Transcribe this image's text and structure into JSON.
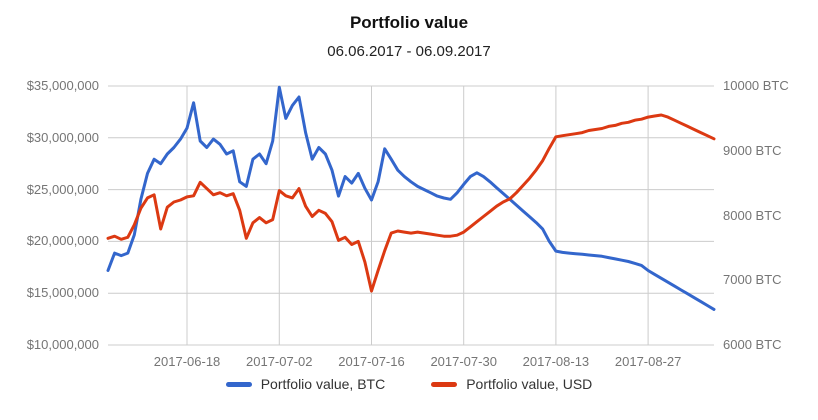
{
  "chart_data": {
    "type": "line",
    "title": "Portfolio value",
    "subtitle": "06.06.2017 - 06.09.2017",
    "grid": true,
    "legend_position": "bottom",
    "left_axis": {
      "min": 10000000,
      "max": 35000000,
      "ticks": [
        {
          "label": "$35,000,000",
          "value": 35000000
        },
        {
          "label": "$30,000,000",
          "value": 30000000
        },
        {
          "label": "$25,000,000",
          "value": 25000000
        },
        {
          "label": "$20,000,000",
          "value": 20000000
        },
        {
          "label": "$15,000,000",
          "value": 15000000
        },
        {
          "label": "$10,000,000",
          "value": 10000000
        }
      ]
    },
    "right_axis": {
      "min": 6000,
      "max": 10000,
      "ticks": [
        {
          "label": "10000 BTC",
          "value": 10000
        },
        {
          "label": "9000 BTC",
          "value": 9000
        },
        {
          "label": "8000 BTC",
          "value": 8000
        },
        {
          "label": "7000 BTC",
          "value": 7000
        },
        {
          "label": "6000 BTC",
          "value": 6000
        }
      ]
    },
    "x_axis": {
      "ticks": [
        {
          "label": "2017-06-18",
          "index": 12
        },
        {
          "label": "2017-07-02",
          "index": 26
        },
        {
          "label": "2017-07-16",
          "index": 40
        },
        {
          "label": "2017-07-30",
          "index": 54
        },
        {
          "label": "2017-08-13",
          "index": 68
        },
        {
          "label": "2017-08-27",
          "index": 82
        }
      ]
    },
    "series": [
      {
        "name": "Portfolio value, BTC",
        "color": "#3366cc",
        "axis": "right",
        "values": [
          7150,
          7420,
          7380,
          7420,
          7700,
          8250,
          8650,
          8870,
          8800,
          8950,
          9050,
          9180,
          9350,
          9740,
          9150,
          9050,
          9180,
          9100,
          8950,
          9000,
          8520,
          8450,
          8870,
          8950,
          8800,
          9150,
          9980,
          9500,
          9700,
          9830,
          9280,
          8870,
          9050,
          8950,
          8700,
          8300,
          8600,
          8500,
          8650,
          8420,
          8240,
          8520,
          9030,
          8870,
          8700,
          8600,
          8520,
          8450,
          8400,
          8350,
          8300,
          8270,
          8250,
          8350,
          8480,
          8600,
          8660,
          8600,
          8520,
          8430,
          8340,
          8250,
          8160,
          8070,
          7980,
          7890,
          7790,
          7600,
          7450,
          7430,
          7420,
          7410,
          7400,
          7390,
          7380,
          7370,
          7350,
          7330,
          7310,
          7290,
          7260,
          7230,
          7150,
          7090,
          7030,
          6970,
          6910,
          6850,
          6790,
          6730,
          6670,
          6610,
          6550
        ]
      },
      {
        "name": "Portfolio value, USD",
        "color": "#dc3912",
        "axis": "left",
        "values": [
          20300000,
          20500000,
          20200000,
          20400000,
          21600000,
          23200000,
          24200000,
          24500000,
          21200000,
          23300000,
          23800000,
          24000000,
          24300000,
          24400000,
          25700000,
          25100000,
          24500000,
          24700000,
          24400000,
          24600000,
          23000000,
          20300000,
          21800000,
          22300000,
          21800000,
          22100000,
          24900000,
          24400000,
          24200000,
          25100000,
          23400000,
          22400000,
          23000000,
          22700000,
          21900000,
          20100000,
          20400000,
          19700000,
          20000000,
          18000000,
          15200000,
          17200000,
          19100000,
          20800000,
          21000000,
          20900000,
          20800000,
          20900000,
          20800000,
          20700000,
          20600000,
          20500000,
          20500000,
          20600000,
          20900000,
          21400000,
          21900000,
          22400000,
          22900000,
          23400000,
          23800000,
          24100000,
          24700000,
          25400000,
          26100000,
          26900000,
          27800000,
          29000000,
          30100000,
          30200000,
          30300000,
          30400000,
          30500000,
          30700000,
          30800000,
          30900000,
          31100000,
          31200000,
          31400000,
          31500000,
          31700000,
          31800000,
          32000000,
          32100000,
          32200000,
          32000000,
          31700000,
          31400000,
          31100000,
          30800000,
          30500000,
          30200000,
          29900000
        ]
      }
    ]
  }
}
